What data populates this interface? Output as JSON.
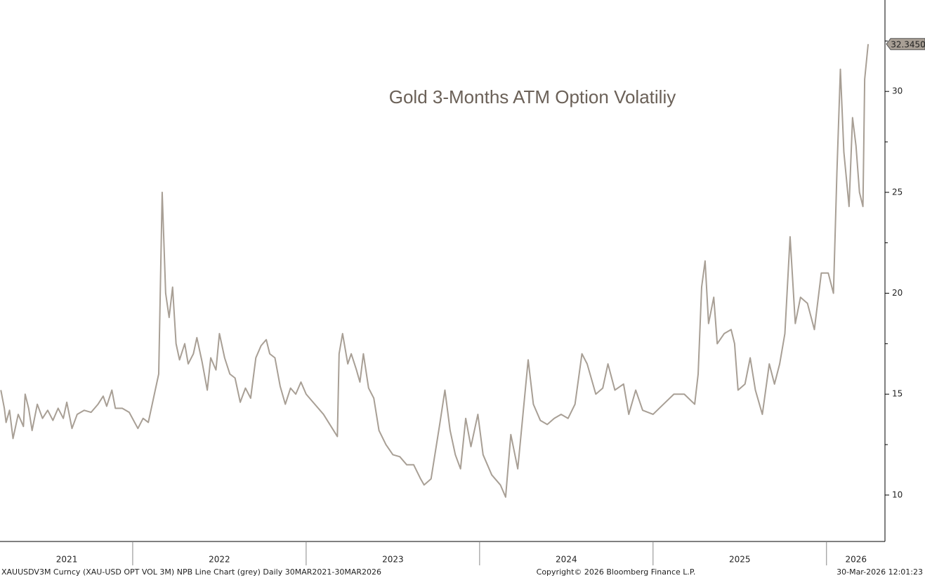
{
  "chart_data": {
    "type": "line",
    "title": "Gold 3-Months ATM Option Volatiliy",
    "source": "XAUUSDV3M Curncy (XAU-USD OPT VOL 3M) NPB Line Chart (grey) Daily 30MAR2021-30MAR2026",
    "copyright": "Copyright© 2026 Bloomberg Finance L.P.",
    "timestamp": "30-Mar-2026 12:01:23",
    "color": "#a89f95",
    "x": [
      2021.24,
      2021.26,
      2021.27,
      2021.29,
      2021.31,
      2021.34,
      2021.37,
      2021.38,
      2021.4,
      2021.42,
      2021.45,
      2021.48,
      2021.51,
      2021.54,
      2021.57,
      2021.6,
      2021.62,
      2021.65,
      2021.68,
      2021.72,
      2021.76,
      2021.8,
      2021.83,
      2021.85,
      2021.88,
      2021.9,
      2021.94,
      2021.98,
      2022.03,
      2022.06,
      2022.09,
      2022.12,
      2022.15,
      2022.17,
      2022.19,
      2022.21,
      2022.23,
      2022.25,
      2022.27,
      2022.3,
      2022.32,
      2022.35,
      2022.37,
      2022.4,
      2022.43,
      2022.45,
      2022.48,
      2022.5,
      2022.53,
      2022.56,
      2022.59,
      2022.62,
      2022.65,
      2022.68,
      2022.71,
      2022.74,
      2022.77,
      2022.79,
      2022.82,
      2022.85,
      2022.88,
      2022.91,
      2022.94,
      2022.97,
      2023.0,
      2023.05,
      2023.1,
      2023.18,
      2023.19,
      2023.21,
      2023.24,
      2023.26,
      2023.29,
      2023.31,
      2023.33,
      2023.36,
      2023.39,
      2023.42,
      2023.46,
      2023.5,
      2023.54,
      2023.58,
      2023.62,
      2023.66,
      2023.68,
      2023.72,
      2023.77,
      2023.8,
      2023.83,
      2023.86,
      2023.89,
      2023.92,
      2023.95,
      2023.99,
      2024.02,
      2024.07,
      2024.12,
      2024.15,
      2024.18,
      2024.22,
      2024.25,
      2024.28,
      2024.31,
      2024.35,
      2024.39,
      2024.43,
      2024.47,
      2024.51,
      2024.55,
      2024.59,
      2024.62,
      2024.67,
      2024.71,
      2024.74,
      2024.78,
      2024.83,
      2024.86,
      2024.9,
      2024.94,
      2025.0,
      2025.06,
      2025.12,
      2025.18,
      2025.24,
      2025.26,
      2025.28,
      2025.3,
      2025.32,
      2025.35,
      2025.37,
      2025.41,
      2025.45,
      2025.47,
      2025.49,
      2025.53,
      2025.56,
      2025.59,
      2025.63,
      2025.67,
      2025.7,
      2025.73,
      2025.76,
      2025.79,
      2025.82,
      2025.85,
      2025.89,
      2025.93,
      2025.97,
      2026.01,
      2026.04,
      2026.06,
      2026.08,
      2026.1,
      2026.13,
      2026.15,
      2026.17,
      2026.19,
      2026.21,
      2026.22,
      2026.24
    ],
    "values": [
      15.2,
      14.3,
      13.6,
      14.2,
      12.8,
      14.0,
      13.4,
      15.0,
      14.3,
      13.2,
      14.5,
      13.8,
      14.2,
      13.7,
      14.3,
      13.8,
      14.6,
      13.3,
      14.0,
      14.2,
      14.1,
      14.5,
      14.9,
      14.4,
      15.2,
      14.3,
      14.3,
      14.1,
      13.3,
      13.8,
      13.6,
      14.8,
      16.0,
      25.0,
      20.0,
      18.8,
      20.3,
      17.5,
      16.7,
      17.5,
      16.5,
      17.0,
      17.8,
      16.6,
      15.2,
      16.8,
      16.2,
      18.0,
      16.8,
      16.0,
      15.8,
      14.6,
      15.3,
      14.8,
      16.8,
      17.4,
      17.7,
      17.0,
      16.8,
      15.4,
      14.5,
      15.3,
      15.0,
      15.6,
      15.0,
      14.5,
      14.0,
      12.9,
      17.0,
      18.0,
      16.5,
      17.0,
      16.2,
      15.6,
      17.0,
      15.3,
      14.8,
      13.2,
      12.5,
      12.0,
      11.9,
      11.5,
      11.5,
      10.8,
      10.5,
      10.8,
      13.5,
      15.2,
      13.2,
      12.0,
      11.3,
      13.8,
      12.4,
      14.0,
      12.0,
      11.0,
      10.5,
      9.9,
      13.0,
      11.3,
      14.0,
      16.7,
      14.5,
      13.7,
      13.5,
      13.8,
      14.0,
      13.8,
      14.5,
      17.0,
      16.5,
      15.0,
      15.3,
      16.5,
      15.2,
      15.5,
      14.0,
      15.2,
      14.2,
      14.0,
      14.5,
      15.0,
      15.0,
      14.5,
      16.0,
      20.3,
      21.6,
      18.5,
      19.8,
      17.5,
      18.0,
      18.2,
      17.5,
      15.2,
      15.5,
      16.8,
      15.2,
      14.0,
      16.5,
      15.5,
      16.5,
      18.0,
      22.8,
      18.5,
      19.8,
      19.5,
      18.2,
      21.0,
      21.0,
      20.0,
      26.0,
      31.1,
      27.0,
      24.3,
      28.7,
      27.3,
      25.0,
      24.3,
      30.6,
      32.345
    ],
    "value_labels": [
      null,
      null,
      null,
      null,
      null,
      null,
      null,
      null,
      null,
      null,
      null,
      null,
      null,
      null,
      null,
      null,
      null,
      null,
      null,
      null,
      null,
      null,
      null,
      null,
      null,
      null,
      null,
      null,
      null,
      null,
      null,
      null,
      null,
      null,
      null,
      null,
      null,
      null,
      null,
      null,
      null,
      null,
      null,
      null,
      null,
      null,
      null,
      null,
      null,
      null,
      null,
      null,
      null,
      null,
      null,
      null,
      null,
      null,
      null,
      null,
      null,
      null,
      null,
      null,
      null,
      null,
      null,
      null,
      null,
      null,
      null,
      null,
      null,
      null,
      null,
      null,
      null,
      null,
      null,
      null,
      null,
      null,
      null,
      null,
      null,
      null,
      null,
      null,
      null,
      null,
      null,
      null,
      null,
      null,
      null,
      null,
      null,
      null,
      null,
      null,
      null,
      null,
      null,
      null,
      null,
      null,
      null,
      null,
      null,
      null,
      null,
      null,
      null,
      null,
      null,
      null,
      null,
      null,
      null,
      null,
      null,
      null,
      null,
      null,
      null,
      null,
      null,
      null,
      null,
      null,
      null,
      null,
      null,
      null,
      null,
      null,
      null,
      null,
      null,
      null,
      null,
      null,
      null,
      null,
      null,
      null,
      null,
      null,
      null,
      null,
      null,
      null,
      null,
      null,
      null,
      null,
      null,
      null,
      null,
      "32.3450"
    ],
    "xlim": [
      2021.235,
      2026.337
    ],
    "xticks": [
      {
        "value": 2021.62,
        "label": "2021"
      },
      {
        "value": 2022.5,
        "label": "2022"
      },
      {
        "value": 2023.5,
        "label": "2023"
      },
      {
        "value": 2024.5,
        "label": "2024"
      },
      {
        "value": 2025.5,
        "label": "2025"
      },
      {
        "value": 2026.17,
        "label": "2026"
      }
    ],
    "xticks_minor": [
      2022,
      2023,
      2024,
      2025,
      2026
    ],
    "ylim": [
      7.7,
      34.53
    ],
    "yticks": [
      10,
      15,
      20,
      25,
      30
    ],
    "yticks_minor": [
      12.5,
      17.5,
      22.5,
      27.5,
      32.5
    ]
  }
}
